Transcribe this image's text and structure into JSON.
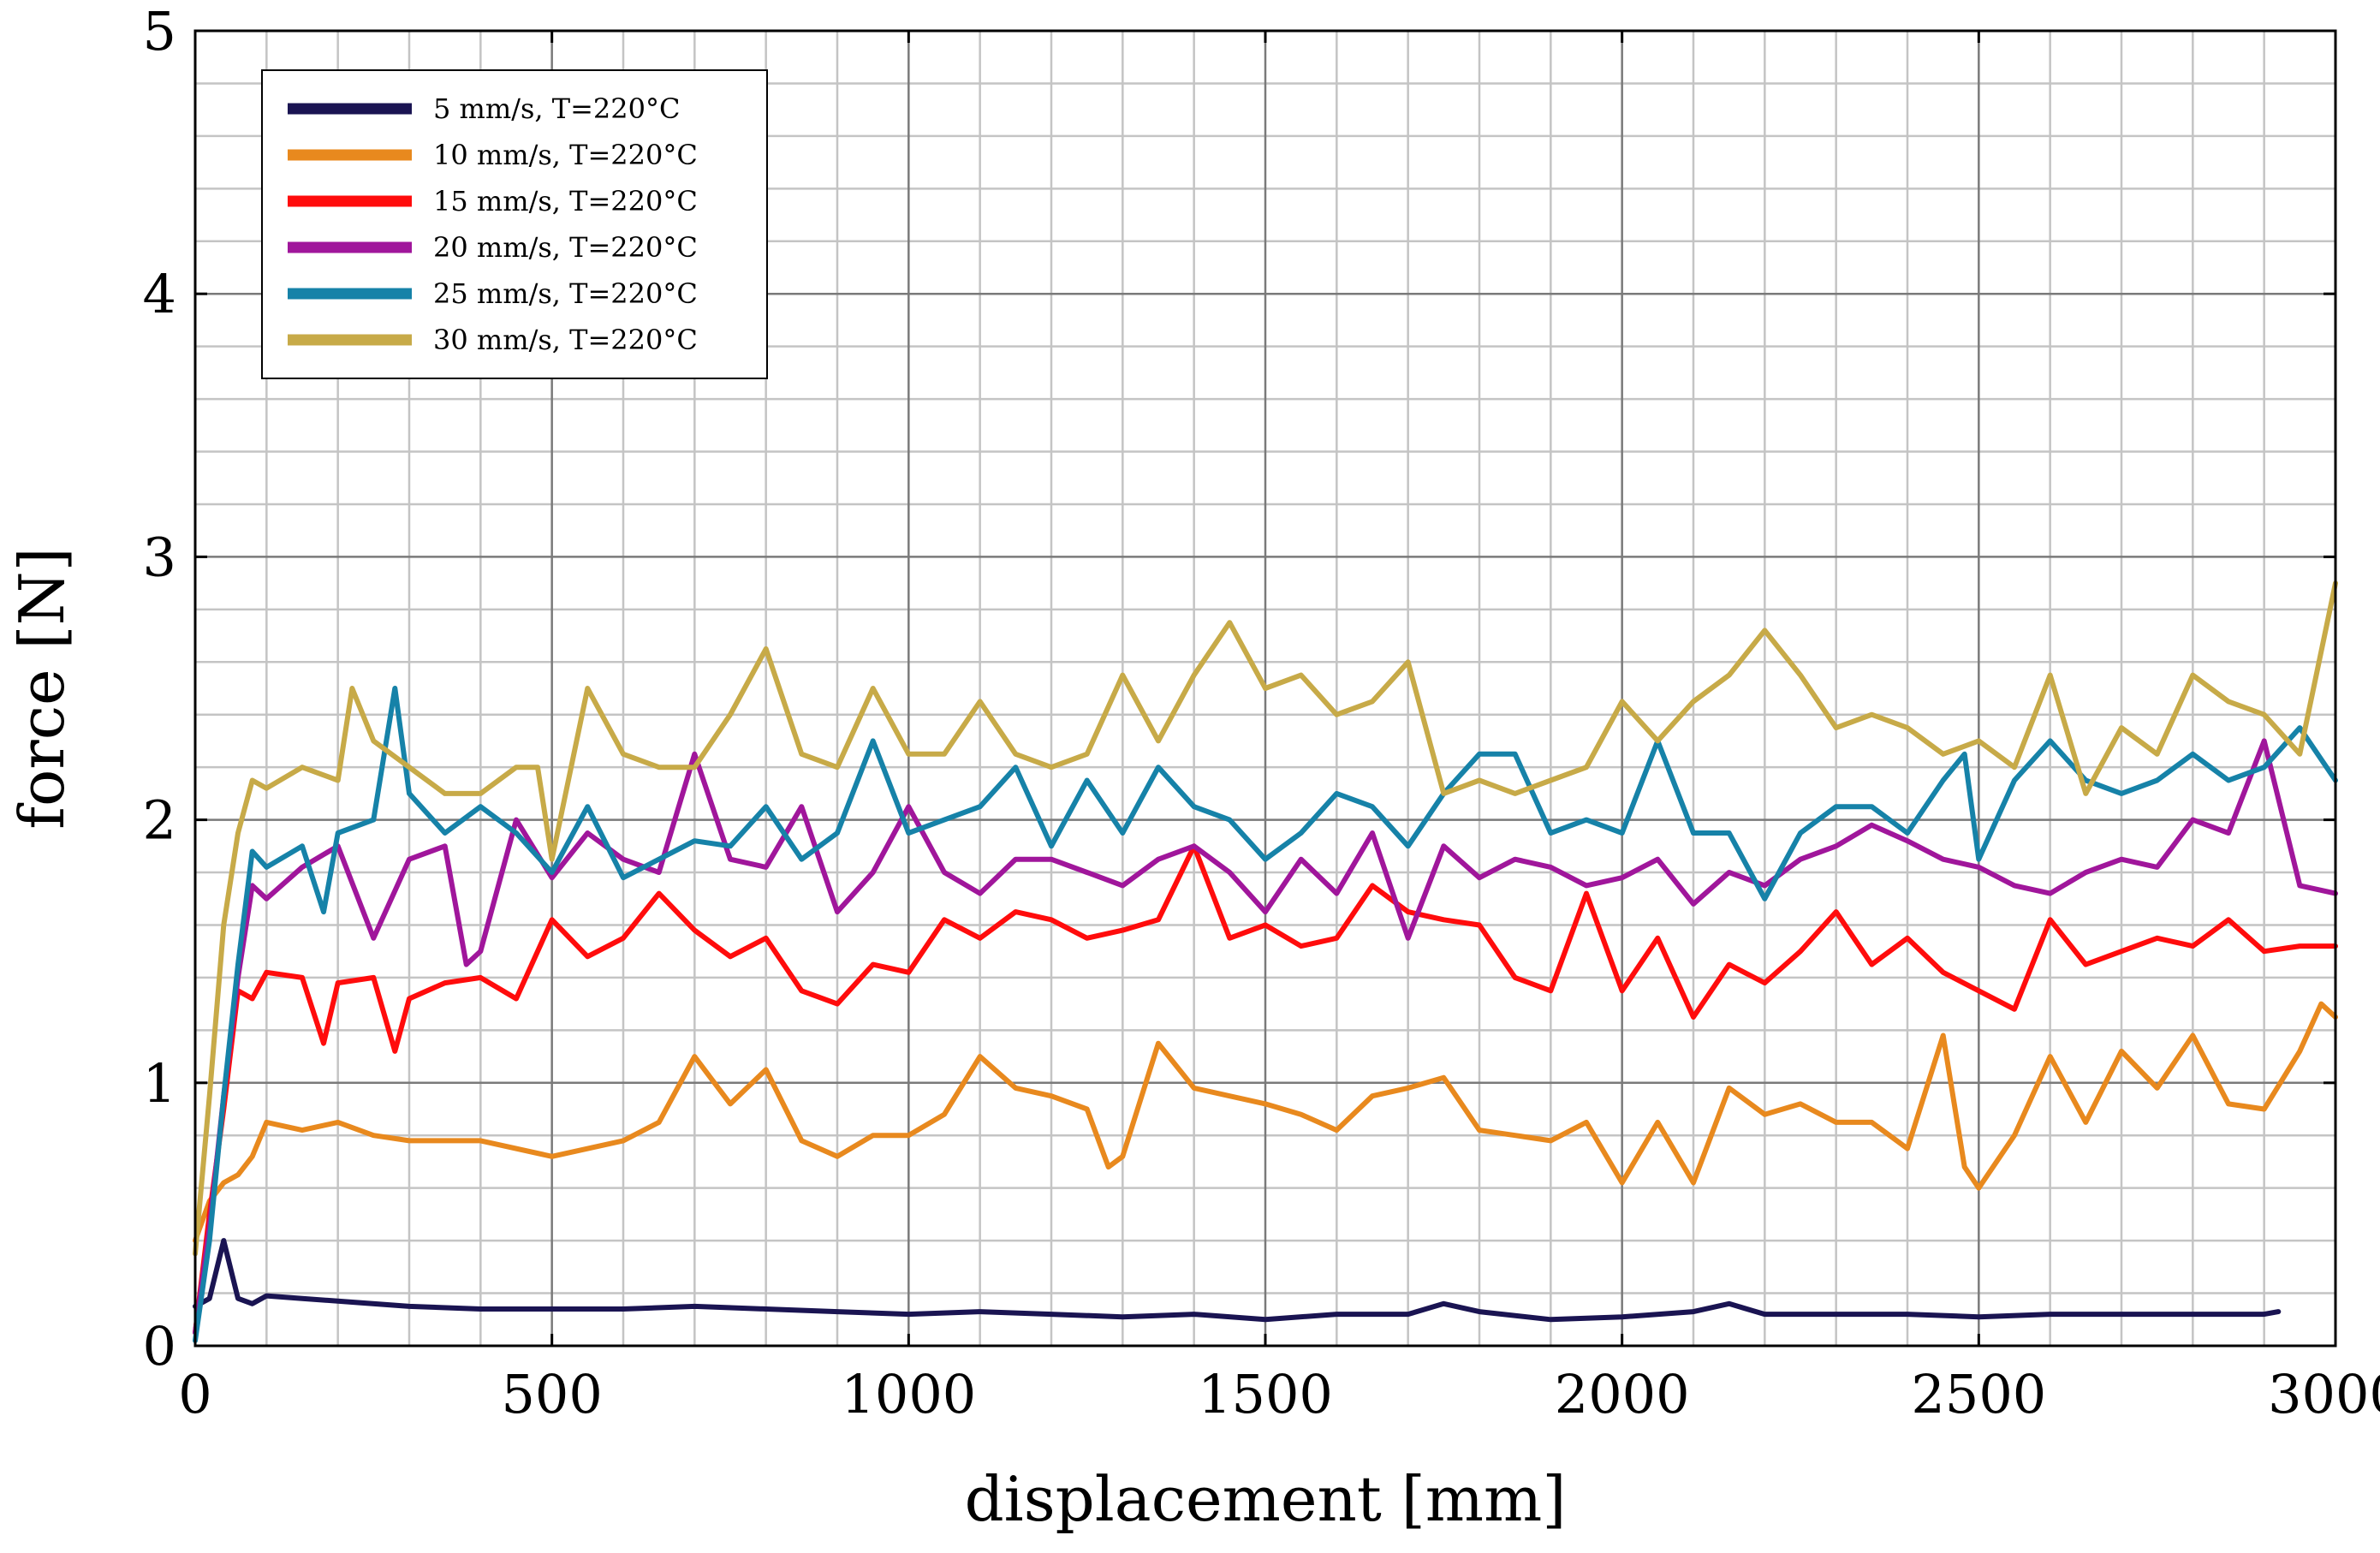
{
  "chart_data": {
    "type": "line",
    "xlabel": "displacement [mm]",
    "ylabel": "force [N]",
    "xlim": [
      0,
      3000
    ],
    "ylim": [
      0,
      5
    ],
    "x_ticks": [
      0,
      500,
      1000,
      1500,
      2000,
      2500,
      3000
    ],
    "y_ticks": [
      0,
      1,
      2,
      3,
      4,
      5
    ],
    "grid": true,
    "legend_position": "top-left",
    "series": [
      {
        "name": "5 mm/s, T=220°C",
        "color": "#1a1452",
        "x": [
          0,
          20,
          40,
          60,
          80,
          100,
          150,
          200,
          300,
          400,
          500,
          600,
          700,
          800,
          900,
          1000,
          1100,
          1200,
          1300,
          1400,
          1500,
          1600,
          1700,
          1750,
          1800,
          1900,
          2000,
          2100,
          2150,
          2200,
          2300,
          2400,
          2500,
          2600,
          2700,
          2800,
          2900,
          2920
        ],
        "y": [
          0.15,
          0.18,
          0.4,
          0.18,
          0.16,
          0.19,
          0.18,
          0.17,
          0.15,
          0.14,
          0.14,
          0.14,
          0.15,
          0.14,
          0.13,
          0.12,
          0.13,
          0.12,
          0.11,
          0.12,
          0.1,
          0.12,
          0.12,
          0.16,
          0.13,
          0.1,
          0.11,
          0.13,
          0.16,
          0.12,
          0.12,
          0.12,
          0.11,
          0.12,
          0.12,
          0.12,
          0.12,
          0.13
        ]
      },
      {
        "name": "10 mm/s, T=220°C",
        "color": "#e8891e",
        "x": [
          0,
          20,
          40,
          60,
          80,
          100,
          150,
          200,
          250,
          300,
          400,
          500,
          600,
          650,
          700,
          750,
          800,
          850,
          900,
          950,
          1000,
          1050,
          1100,
          1150,
          1200,
          1250,
          1280,
          1300,
          1350,
          1400,
          1450,
          1500,
          1550,
          1600,
          1650,
          1700,
          1750,
          1800,
          1850,
          1900,
          1950,
          2000,
          2050,
          2100,
          2150,
          2200,
          2250,
          2300,
          2350,
          2400,
          2450,
          2480,
          2500,
          2550,
          2600,
          2650,
          2700,
          2750,
          2800,
          2850,
          2900,
          2950,
          2980,
          3000
        ],
        "y": [
          0.4,
          0.55,
          0.62,
          0.65,
          0.72,
          0.85,
          0.82,
          0.85,
          0.8,
          0.78,
          0.78,
          0.72,
          0.78,
          0.85,
          1.1,
          0.92,
          1.05,
          0.78,
          0.72,
          0.8,
          0.8,
          0.88,
          1.1,
          0.98,
          0.95,
          0.9,
          0.68,
          0.72,
          1.15,
          0.98,
          0.95,
          0.92,
          0.88,
          0.82,
          0.95,
          0.98,
          1.02,
          0.82,
          0.8,
          0.78,
          0.85,
          0.62,
          0.85,
          0.62,
          0.98,
          0.88,
          0.92,
          0.85,
          0.85,
          0.75,
          1.18,
          0.68,
          0.6,
          0.8,
          1.1,
          0.85,
          1.12,
          0.98,
          1.18,
          0.92,
          0.9,
          1.12,
          1.3,
          1.25
        ]
      },
      {
        "name": "15 mm/s, T=220°C",
        "color": "#ff0c0c",
        "x": [
          0,
          20,
          40,
          60,
          80,
          100,
          150,
          180,
          200,
          250,
          280,
          300,
          350,
          400,
          450,
          500,
          550,
          600,
          650,
          700,
          750,
          800,
          850,
          900,
          950,
          1000,
          1050,
          1100,
          1150,
          1200,
          1250,
          1300,
          1350,
          1400,
          1450,
          1500,
          1550,
          1600,
          1650,
          1700,
          1750,
          1800,
          1850,
          1900,
          1950,
          2000,
          2050,
          2100,
          2150,
          2200,
          2250,
          2300,
          2350,
          2400,
          2450,
          2500,
          2550,
          2600,
          2650,
          2700,
          2750,
          2800,
          2850,
          2900,
          2950,
          3000
        ],
        "y": [
          0.05,
          0.5,
          0.9,
          1.35,
          1.32,
          1.42,
          1.4,
          1.15,
          1.38,
          1.4,
          1.12,
          1.32,
          1.38,
          1.4,
          1.32,
          1.62,
          1.48,
          1.55,
          1.72,
          1.58,
          1.48,
          1.55,
          1.35,
          1.3,
          1.45,
          1.42,
          1.62,
          1.55,
          1.65,
          1.62,
          1.55,
          1.58,
          1.62,
          1.9,
          1.55,
          1.6,
          1.52,
          1.55,
          1.75,
          1.65,
          1.62,
          1.6,
          1.4,
          1.35,
          1.72,
          1.35,
          1.55,
          1.25,
          1.45,
          1.38,
          1.5,
          1.65,
          1.45,
          1.55,
          1.42,
          1.35,
          1.28,
          1.62,
          1.45,
          1.5,
          1.55,
          1.52,
          1.62,
          1.5,
          1.52,
          1.52
        ]
      },
      {
        "name": "20 mm/s, T=220°C",
        "color": "#a0169b",
        "x": [
          0,
          20,
          40,
          60,
          80,
          100,
          150,
          200,
          250,
          300,
          350,
          380,
          400,
          450,
          500,
          550,
          600,
          650,
          700,
          750,
          800,
          850,
          900,
          950,
          1000,
          1050,
          1100,
          1150,
          1200,
          1250,
          1300,
          1350,
          1400,
          1450,
          1500,
          1550,
          1600,
          1650,
          1700,
          1750,
          1800,
          1850,
          1900,
          1950,
          2000,
          2050,
          2100,
          2150,
          2200,
          2250,
          2300,
          2350,
          2400,
          2450,
          2500,
          2550,
          2600,
          2650,
          2700,
          2750,
          2800,
          2850,
          2900,
          2950,
          3000
        ],
        "y": [
          0.05,
          0.45,
          0.95,
          1.4,
          1.75,
          1.7,
          1.82,
          1.9,
          1.55,
          1.85,
          1.9,
          1.45,
          1.5,
          2.0,
          1.78,
          1.95,
          1.85,
          1.8,
          2.25,
          1.85,
          1.82,
          2.05,
          1.65,
          1.8,
          2.05,
          1.8,
          1.72,
          1.85,
          1.85,
          1.8,
          1.75,
          1.85,
          1.9,
          1.8,
          1.65,
          1.85,
          1.72,
          1.95,
          1.55,
          1.9,
          1.78,
          1.85,
          1.82,
          1.75,
          1.78,
          1.85,
          1.68,
          1.8,
          1.75,
          1.85,
          1.9,
          1.98,
          1.92,
          1.85,
          1.82,
          1.75,
          1.72,
          1.8,
          1.85,
          1.82,
          2.0,
          1.95,
          2.3,
          1.75,
          1.72
        ]
      },
      {
        "name": "25 mm/s, T=220°C",
        "color": "#1682a8",
        "x": [
          0,
          20,
          40,
          60,
          80,
          100,
          150,
          180,
          200,
          250,
          280,
          300,
          350,
          400,
          450,
          500,
          550,
          600,
          650,
          700,
          750,
          800,
          850,
          900,
          950,
          1000,
          1050,
          1100,
          1150,
          1200,
          1250,
          1300,
          1350,
          1400,
          1450,
          1500,
          1550,
          1600,
          1650,
          1700,
          1750,
          1800,
          1850,
          1900,
          1950,
          2000,
          2050,
          2100,
          2150,
          2200,
          2250,
          2300,
          2350,
          2400,
          2450,
          2480,
          2500,
          2550,
          2600,
          2650,
          2700,
          2750,
          2800,
          2850,
          2900,
          2950,
          3000
        ],
        "y": [
          0.02,
          0.4,
          0.95,
          1.45,
          1.88,
          1.82,
          1.9,
          1.65,
          1.95,
          2.0,
          2.5,
          2.1,
          1.95,
          2.05,
          1.95,
          1.8,
          2.05,
          1.78,
          1.85,
          1.92,
          1.9,
          2.05,
          1.85,
          1.95,
          2.3,
          1.95,
          2.0,
          2.05,
          2.2,
          1.9,
          2.15,
          1.95,
          2.2,
          2.05,
          2.0,
          1.85,
          1.95,
          2.1,
          2.05,
          1.9,
          2.1,
          2.25,
          2.25,
          1.95,
          2.0,
          1.95,
          2.3,
          1.95,
          1.95,
          1.7,
          1.95,
          2.05,
          2.05,
          1.95,
          2.15,
          2.25,
          1.85,
          2.15,
          2.3,
          2.15,
          2.1,
          2.15,
          2.25,
          2.15,
          2.2,
          2.35,
          2.15
        ]
      },
      {
        "name": "30 mm/s, T=220°C",
        "color": "#c7aa48",
        "x": [
          0,
          20,
          40,
          60,
          80,
          100,
          150,
          200,
          220,
          250,
          300,
          350,
          400,
          450,
          480,
          500,
          550,
          600,
          650,
          700,
          750,
          800,
          850,
          900,
          950,
          1000,
          1050,
          1100,
          1150,
          1200,
          1250,
          1300,
          1350,
          1400,
          1450,
          1500,
          1550,
          1600,
          1650,
          1700,
          1750,
          1800,
          1850,
          1900,
          1950,
          2000,
          2050,
          2100,
          2150,
          2200,
          2250,
          2300,
          2350,
          2400,
          2450,
          2500,
          2550,
          2600,
          2650,
          2700,
          2750,
          2800,
          2850,
          2900,
          2950,
          3000
        ],
        "y": [
          0.35,
          0.95,
          1.6,
          1.95,
          2.15,
          2.12,
          2.2,
          2.15,
          2.5,
          2.3,
          2.2,
          2.1,
          2.1,
          2.2,
          2.2,
          1.85,
          2.5,
          2.25,
          2.2,
          2.2,
          2.4,
          2.65,
          2.25,
          2.2,
          2.5,
          2.25,
          2.25,
          2.45,
          2.25,
          2.2,
          2.25,
          2.55,
          2.3,
          2.55,
          2.75,
          2.5,
          2.55,
          2.4,
          2.45,
          2.6,
          2.1,
          2.15,
          2.1,
          2.15,
          2.2,
          2.45,
          2.3,
          2.45,
          2.55,
          2.72,
          2.55,
          2.35,
          2.4,
          2.35,
          2.25,
          2.3,
          2.2,
          2.55,
          2.1,
          2.35,
          2.25,
          2.55,
          2.45,
          2.4,
          2.25,
          2.9
        ]
      }
    ]
  }
}
